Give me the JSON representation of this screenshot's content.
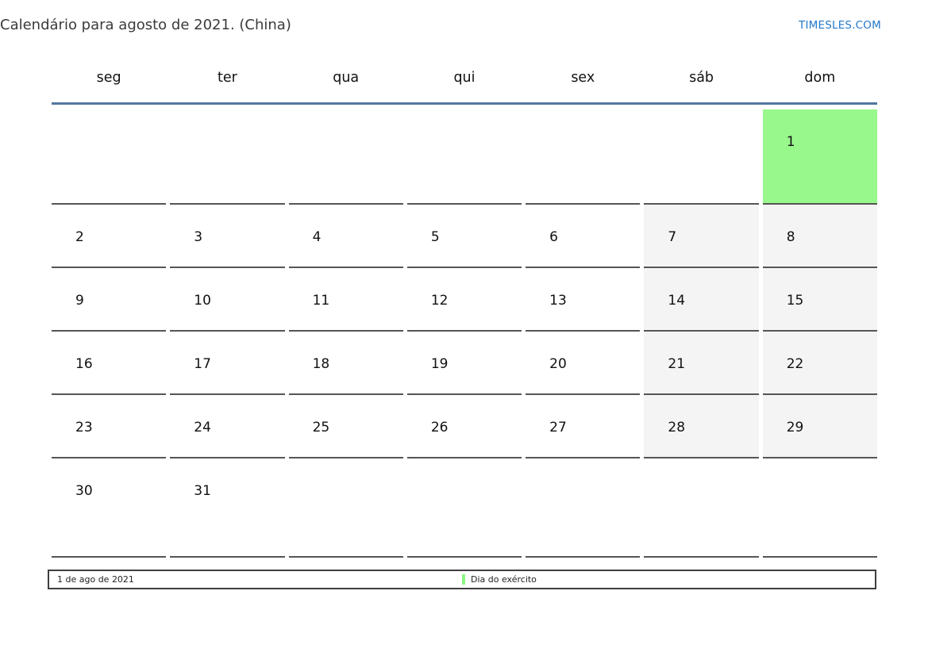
{
  "page": {
    "title": "Calendário para agosto de 2021. (China)",
    "brand": "TIMESLES.COM"
  },
  "colors": {
    "holiday_green": "#98f88b",
    "weekend_gray": "#f4f4f4",
    "header_rule_blue": "#54779e",
    "brand_blue": "#2478c8",
    "cell_border": "#555555"
  },
  "calendar": {
    "month": "agosto",
    "year": "2021",
    "region": "China",
    "weekday_headers": [
      "seg",
      "ter",
      "qua",
      "qui",
      "sex",
      "sáb",
      "dom"
    ],
    "weeks": [
      [
        {
          "day": ""
        },
        {
          "day": ""
        },
        {
          "day": ""
        },
        {
          "day": ""
        },
        {
          "day": ""
        },
        {
          "day": ""
        },
        {
          "day": "1",
          "holiday": true
        }
      ],
      [
        {
          "day": "2"
        },
        {
          "day": "3"
        },
        {
          "day": "4"
        },
        {
          "day": "5"
        },
        {
          "day": "6"
        },
        {
          "day": "7"
        },
        {
          "day": "8"
        }
      ],
      [
        {
          "day": "9"
        },
        {
          "day": "10"
        },
        {
          "day": "11"
        },
        {
          "day": "12"
        },
        {
          "day": "13"
        },
        {
          "day": "14"
        },
        {
          "day": "15"
        }
      ],
      [
        {
          "day": "16"
        },
        {
          "day": "17"
        },
        {
          "day": "18"
        },
        {
          "day": "19"
        },
        {
          "day": "20"
        },
        {
          "day": "21"
        },
        {
          "day": "22"
        }
      ],
      [
        {
          "day": "23"
        },
        {
          "day": "24"
        },
        {
          "day": "25"
        },
        {
          "day": "26"
        },
        {
          "day": "27"
        },
        {
          "day": "28"
        },
        {
          "day": "29"
        }
      ],
      [
        {
          "day": "30"
        },
        {
          "day": "31"
        },
        {
          "day": ""
        },
        {
          "day": ""
        },
        {
          "day": ""
        },
        {
          "day": ""
        },
        {
          "day": ""
        }
      ]
    ]
  },
  "legend": {
    "date_range": "1 de ago de 2021",
    "holiday_label": "Dia do exército"
  }
}
